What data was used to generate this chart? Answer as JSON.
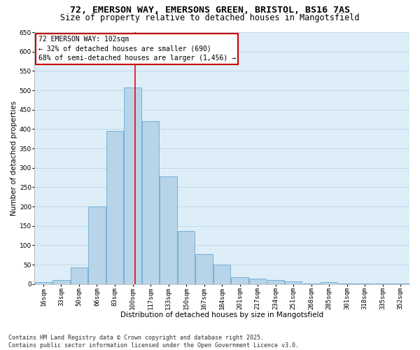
{
  "title_line1": "72, EMERSON WAY, EMERSONS GREEN, BRISTOL, BS16 7AS",
  "title_line2": "Size of property relative to detached houses in Mangotsfield",
  "xlabel": "Distribution of detached houses by size in Mangotsfield",
  "ylabel": "Number of detached properties",
  "categories": [
    "16sqm",
    "33sqm",
    "50sqm",
    "66sqm",
    "83sqm",
    "100sqm",
    "117sqm",
    "133sqm",
    "150sqm",
    "167sqm",
    "184sqm",
    "201sqm",
    "217sqm",
    "234sqm",
    "251sqm",
    "268sqm",
    "285sqm",
    "301sqm",
    "318sqm",
    "335sqm",
    "352sqm"
  ],
  "values": [
    5,
    10,
    43,
    200,
    395,
    507,
    420,
    278,
    137,
    78,
    50,
    18,
    15,
    10,
    7,
    2,
    5,
    2,
    1,
    2,
    1
  ],
  "bar_color": "#b8d4e8",
  "bar_edge_color": "#6aaad4",
  "red_line_x": 5.12,
  "annotation_line1": "72 EMERSON WAY: 102sqm",
  "annotation_line2": "← 32% of detached houses are smaller (690)",
  "annotation_line3": "68% of semi-detached houses are larger (1,456) →",
  "annotation_box_color": "#ffffff",
  "annotation_box_edge": "#cc0000",
  "ylim": [
    0,
    650
  ],
  "yticks": [
    0,
    50,
    100,
    150,
    200,
    250,
    300,
    350,
    400,
    450,
    500,
    550,
    600,
    650
  ],
  "grid_color": "#c5d8e8",
  "plot_bg_color": "#ddeef8",
  "footer_line1": "Contains HM Land Registry data © Crown copyright and database right 2025.",
  "footer_line2": "Contains public sector information licensed under the Open Government Licence v3.0.",
  "title_fontsize": 9.5,
  "subtitle_fontsize": 8.5,
  "axis_label_fontsize": 7.5,
  "tick_fontsize": 6.5,
  "annotation_fontsize": 7,
  "footer_fontsize": 6
}
